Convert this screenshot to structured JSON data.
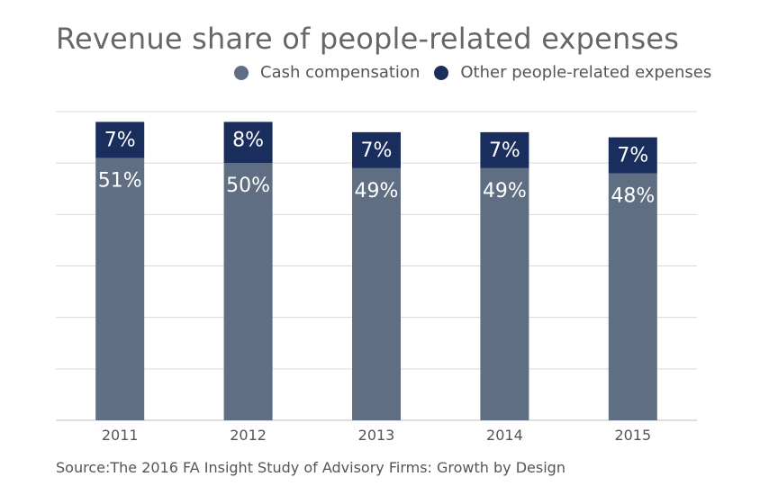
{
  "chart_data": {
    "type": "bar",
    "stacked": true,
    "title": "Revenue share of people-related expenses",
    "categories": [
      "2011",
      "2012",
      "2013",
      "2014",
      "2015"
    ],
    "series": [
      {
        "name": "Cash compensation",
        "color": "#5f6e82",
        "values": [
          51,
          50,
          49,
          49,
          48
        ],
        "labels": [
          "51%",
          "50%",
          "49%",
          "49%",
          "48%"
        ]
      },
      {
        "name": "Other people-related expenses",
        "color": "#1a2e5e",
        "values": [
          7,
          8,
          7,
          7,
          7
        ],
        "labels": [
          "7%",
          "8%",
          "7%",
          "7%",
          "7%"
        ]
      }
    ],
    "ylim": [
      0,
      60
    ],
    "grid": true,
    "legend_position": "top",
    "xlabel": "",
    "ylabel": ""
  },
  "source": "Source:The 2016 FA Insight Study of Advisory Firms: Growth by Design"
}
